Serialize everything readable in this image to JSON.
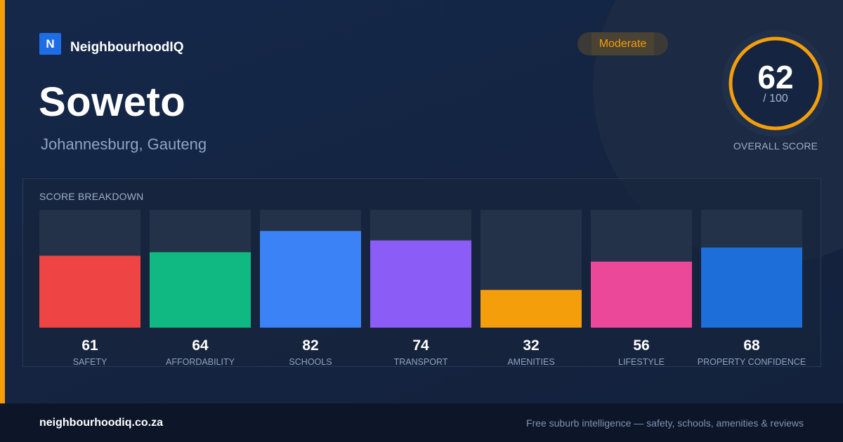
{
  "brand": {
    "mark": "N",
    "name": "NeighbourhoodIQ"
  },
  "suburb": {
    "name": "Soweto",
    "location": "Johannesburg, Gauteng"
  },
  "rating_badge": "Moderate",
  "overall": {
    "score": "62",
    "max_label": "/ 100",
    "max": 100,
    "label": "OVERALL SCORE",
    "ring_color": "#f59e0b"
  },
  "breakdown_title": "SCORE BREAKDOWN",
  "chart_data": {
    "type": "bar",
    "categories": [
      "SAFETY",
      "AFFORDABILITY",
      "SCHOOLS",
      "TRANSPORT",
      "AMENITIES",
      "LIFESTYLE",
      "PROPERTY CONFIDENCE"
    ],
    "values": [
      61,
      64,
      82,
      74,
      32,
      56,
      68
    ],
    "colors": [
      "#ef4444",
      "#10b981",
      "#3b82f6",
      "#8b5cf6",
      "#f59e0b",
      "#ec4899",
      "#1d6ed8"
    ],
    "ylim": [
      0,
      100
    ],
    "title": "SCORE BREAKDOWN",
    "xlabel": "",
    "ylabel": ""
  },
  "footer": {
    "url": "neighbourhoodiq.co.za",
    "tagline": "Free suburb intelligence — safety, schools, amenities & reviews"
  }
}
